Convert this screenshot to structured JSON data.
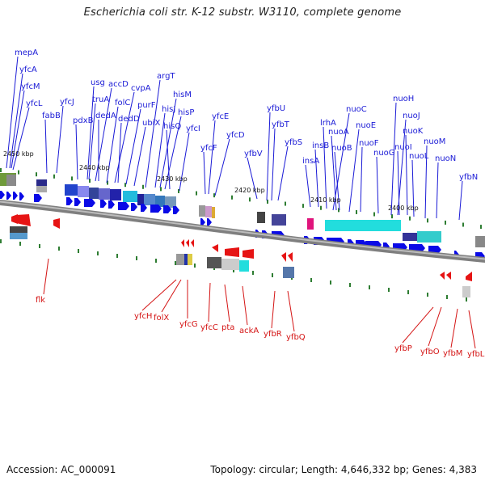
{
  "title": "Escherichia coli str. K-12 substr. W3110, complete genome",
  "accession": "Accession: AC_000091",
  "topology": "Topology: circular; Length: 4,646,332 bp; Genes: 4,383",
  "kbp_labels": [
    "2450 kbp",
    "2440 kbp",
    "2430 kbp",
    "2420 kbp",
    "2410 kbp",
    "2400 kbp"
  ],
  "colors": {
    "forward_strand": "#0a0ae6",
    "reverse_strand": "#e61414",
    "backbone": "#7f7f7f",
    "tick": "#2e7d32"
  },
  "top_genes": [
    "mepA",
    "yfcA",
    "yfcM",
    "yfcL",
    "fabB",
    "yfcJ",
    "usg",
    "truA",
    "pdxB",
    "accD",
    "dedA",
    "folC",
    "cvpA",
    "dedD",
    "purF",
    "ubiX",
    "argT",
    "hisJ",
    "hisM",
    "hisP",
    "hisQ",
    "yfcI",
    "yfcE",
    "yfcF",
    "yfcD",
    "yfbV",
    "yfbU",
    "yfbT",
    "yfbS",
    "insA",
    "insB",
    "lrhA",
    "nuoC",
    "nuoA",
    "nuoB",
    "nuoE",
    "nuoF",
    "nuoG",
    "nuoH",
    "nuoJ",
    "nuoI",
    "nuoK",
    "nuoL",
    "nuoM",
    "nuoN",
    "yfbN"
  ],
  "bottom_genes": [
    "flk",
    "yfcH",
    "folX",
    "yfcG",
    "yfcC",
    "pta",
    "ackA",
    "yfbR",
    "yfbQ",
    "yfbP",
    "yfbO",
    "yfbM",
    "yfbL"
  ]
}
